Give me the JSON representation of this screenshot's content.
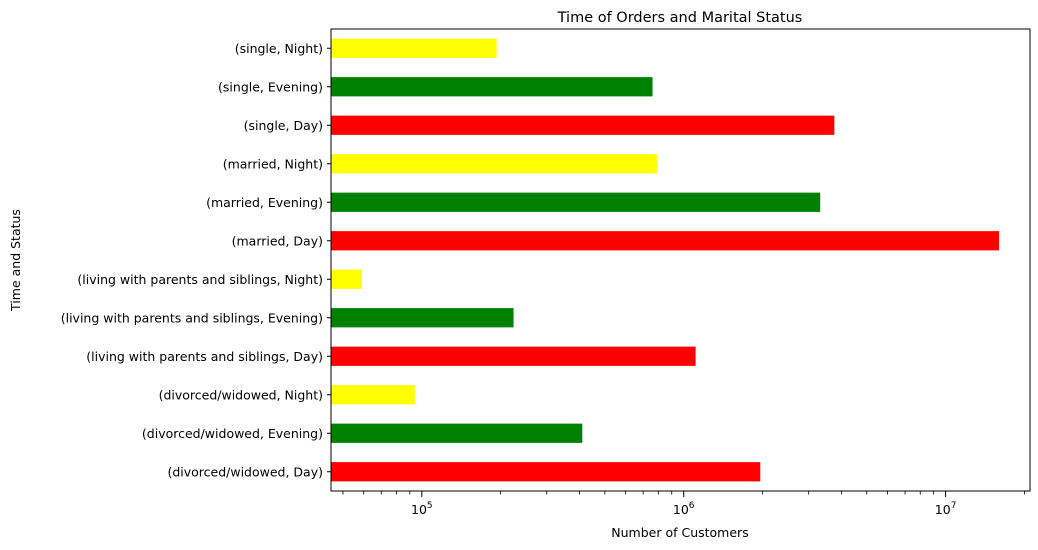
{
  "chart_data": {
    "type": "bar",
    "orientation": "horizontal",
    "title": "Time of Orders and Marital Status",
    "xlabel": "Number of Customers",
    "ylabel": "Time and Status",
    "x_scale": "log",
    "xlim": [
      45000,
      21000000
    ],
    "grid": false,
    "legend": "none",
    "x_ticks": [
      {
        "value": 100000,
        "base": "10",
        "exp": "5"
      },
      {
        "value": 1000000,
        "base": "10",
        "exp": "6"
      },
      {
        "value": 10000000,
        "base": "10",
        "exp": "7"
      }
    ],
    "categories": [
      "(divorced/widowed, Day)",
      "(divorced/widowed, Evening)",
      "(divorced/widowed, Night)",
      "(living with parents and siblings, Day)",
      "(living with parents and siblings, Evening)",
      "(living with parents and siblings, Night)",
      "(married, Day)",
      "(married, Evening)",
      "(married, Night)",
      "(single, Day)",
      "(single, Evening)",
      "(single, Night)"
    ],
    "values": [
      1960000,
      410000,
      94000,
      1110000,
      224000,
      59000,
      16000000,
      3320000,
      790000,
      3760000,
      760000,
      193000
    ],
    "colors": [
      "#ff0000",
      "#008000",
      "#ffff00",
      "#ff0000",
      "#008000",
      "#ffff00",
      "#ff0000",
      "#008000",
      "#ffff00",
      "#ff0000",
      "#008000",
      "#ffff00"
    ]
  }
}
